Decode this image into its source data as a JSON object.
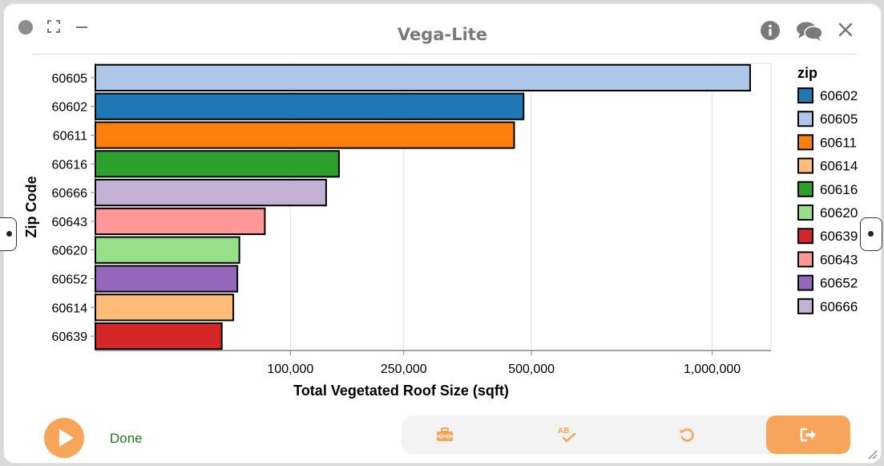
{
  "window": {
    "title": "Vega-Lite"
  },
  "toolbar_icons": [
    "dot-icon",
    "expand-icon",
    "minimize-icon",
    "info-icon",
    "chat-icon",
    "close-icon"
  ],
  "chart_data": {
    "type": "bar",
    "orientation": "horizontal",
    "xlabel": "Total Vegetated Roof Size (sqft)",
    "ylabel": "Zip Code",
    "x_scale": "sqrt",
    "xlim": [
      0,
      1200000
    ],
    "x_ticks": [
      100000,
      250000,
      500000,
      1000000
    ],
    "x_tick_labels": [
      "100,000",
      "250,000",
      "500,000",
      "1,000,000"
    ],
    "grid": true,
    "categories": [
      "60605",
      "60602",
      "60611",
      "60616",
      "60666",
      "60643",
      "60620",
      "60652",
      "60614",
      "60639"
    ],
    "values": [
      1127000,
      482000,
      461000,
      156000,
      140000,
      75500,
      54500,
      53000,
      50000,
      42000
    ],
    "colors": [
      "#aec7e8",
      "#1f77b4",
      "#ff7f0e",
      "#2ca02c",
      "#c5b0d5",
      "#ff9896",
      "#98df8a",
      "#9467bd",
      "#ffbb78",
      "#d62728"
    ],
    "legend": {
      "title": "zip",
      "placement": "right",
      "entries": [
        "60602",
        "60605",
        "60611",
        "60614",
        "60616",
        "60620",
        "60639",
        "60643",
        "60652",
        "60666"
      ],
      "colors": [
        "#1f77b4",
        "#aec7e8",
        "#ff7f0e",
        "#ffbb78",
        "#2ca02c",
        "#98df8a",
        "#d62728",
        "#ff9896",
        "#9467bd",
        "#c5b0d5"
      ]
    }
  },
  "footer": {
    "status": "Done",
    "tools": [
      "toolbox-icon",
      "spellcheck-icon",
      "undo-icon",
      "exit-icon"
    ],
    "accent_color": "#f8a55c"
  }
}
